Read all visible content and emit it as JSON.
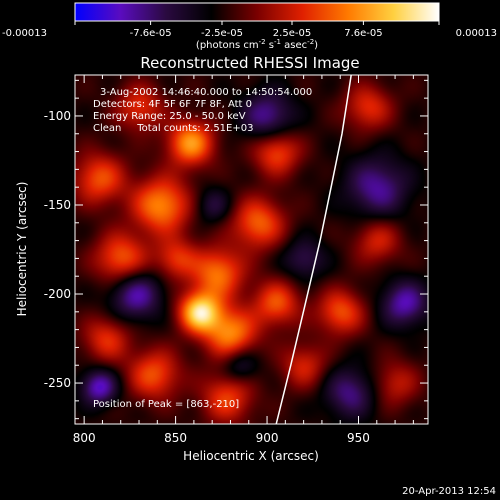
{
  "chart_data": {
    "type": "heatmap",
    "title": "Reconstructed RHESSI Image",
    "xlabel": "Heliocentric X (arcsec)",
    "ylabel": "Heliocentric Y (arcsec)",
    "xlim": [
      795,
      988
    ],
    "ylim": [
      -273,
      -77
    ],
    "x_ticks": [
      800,
      850,
      900,
      950
    ],
    "y_ticks": [
      -100,
      -150,
      -200,
      -250
    ],
    "colorbar": {
      "tick_labels": [
        "-0.00013",
        "-7.6e-05",
        "-2.5e-05",
        "2.5e-05",
        "7.6e-05",
        "0.00013"
      ],
      "tick_values": [
        -0.00013,
        -7.6e-05,
        -2.5e-05,
        2.5e-05,
        7.6e-05,
        0.00013
      ],
      "range": [
        -0.00013,
        0.00013
      ],
      "units_label": "(photons cm",
      "units_label_exp1": "-2",
      "units_label_mid": " s",
      "units_label_exp2": "-1",
      "units_label_end": " asec",
      "units_label_exp3": "-2",
      "units_label_close": ")",
      "palette": [
        "#0000ff",
        "#5a0cbf",
        "#2a0a40",
        "#000000",
        "#7a0000",
        "#e02000",
        "#ff7a00",
        "#ffd040",
        "#ffffff"
      ]
    },
    "annotations": [
      "3-Aug-2002 14:46:40.000 to 14:50:54.000",
      "Detectors: 4F 5F 6F 7F 8F, Att 0",
      "Energy Range: 25.0 - 50.0 keV",
      "Clean     Total counts: 2.51E+03",
      "Position of Peak = [863,-210]"
    ],
    "peak": {
      "x": 863,
      "y": -210
    },
    "limb_curve": [
      [
        905,
        -273
      ],
      [
        913,
        -240
      ],
      [
        921,
        -205
      ],
      [
        929,
        -170
      ],
      [
        935,
        -140
      ],
      [
        941,
        -110
      ],
      [
        946,
        -77
      ]
    ],
    "blobs": [
      {
        "x": 863,
        "y": -210,
        "amp": 1.0,
        "s": 8
      },
      {
        "x": 873,
        "y": -188,
        "amp": 0.65,
        "s": 10
      },
      {
        "x": 880,
        "y": -222,
        "amp": 0.7,
        "s": 10
      },
      {
        "x": 858,
        "y": -115,
        "amp": 0.75,
        "s": 9
      },
      {
        "x": 842,
        "y": -150,
        "amp": 0.72,
        "s": 11
      },
      {
        "x": 820,
        "y": -180,
        "amp": 0.6,
        "s": 10
      },
      {
        "x": 808,
        "y": -135,
        "amp": 0.55,
        "s": 10
      },
      {
        "x": 895,
        "y": -160,
        "amp": 0.6,
        "s": 10
      },
      {
        "x": 905,
        "y": -120,
        "amp": 0.55,
        "s": 9
      },
      {
        "x": 838,
        "y": -245,
        "amp": 0.55,
        "s": 10
      },
      {
        "x": 878,
        "y": -258,
        "amp": 0.5,
        "s": 10
      },
      {
        "x": 905,
        "y": -205,
        "amp": 0.55,
        "s": 9
      },
      {
        "x": 940,
        "y": -210,
        "amp": 0.55,
        "s": 9
      },
      {
        "x": 960,
        "y": -170,
        "amp": 0.4,
        "s": 9
      },
      {
        "x": 955,
        "y": -95,
        "amp": 0.45,
        "s": 9
      },
      {
        "x": 830,
        "y": -95,
        "amp": 0.45,
        "s": 9
      },
      {
        "x": 812,
        "y": -225,
        "amp": 0.45,
        "s": 9
      },
      {
        "x": 970,
        "y": -250,
        "amp": 0.35,
        "s": 9
      },
      {
        "x": 920,
        "y": -240,
        "amp": 0.4,
        "s": 9
      },
      {
        "x": 850,
        "y": -180,
        "amp": 0.45,
        "s": 8
      },
      {
        "x": 828,
        "y": -200,
        "amp": -0.55,
        "s": 10
      },
      {
        "x": 808,
        "y": -252,
        "amp": -0.6,
        "s": 7
      },
      {
        "x": 900,
        "y": -100,
        "amp": -0.5,
        "s": 10
      },
      {
        "x": 960,
        "y": -140,
        "amp": -0.5,
        "s": 12
      },
      {
        "x": 975,
        "y": -205,
        "amp": -0.55,
        "s": 9
      },
      {
        "x": 945,
        "y": -255,
        "amp": -0.45,
        "s": 10
      },
      {
        "x": 885,
        "y": -240,
        "amp": -0.35,
        "s": 7
      },
      {
        "x": 870,
        "y": -150,
        "amp": -0.3,
        "s": 7
      },
      {
        "x": 920,
        "y": -180,
        "amp": -0.35,
        "s": 8
      }
    ]
  },
  "footer": {
    "timestamp": "20-Apr-2013 12:54"
  }
}
